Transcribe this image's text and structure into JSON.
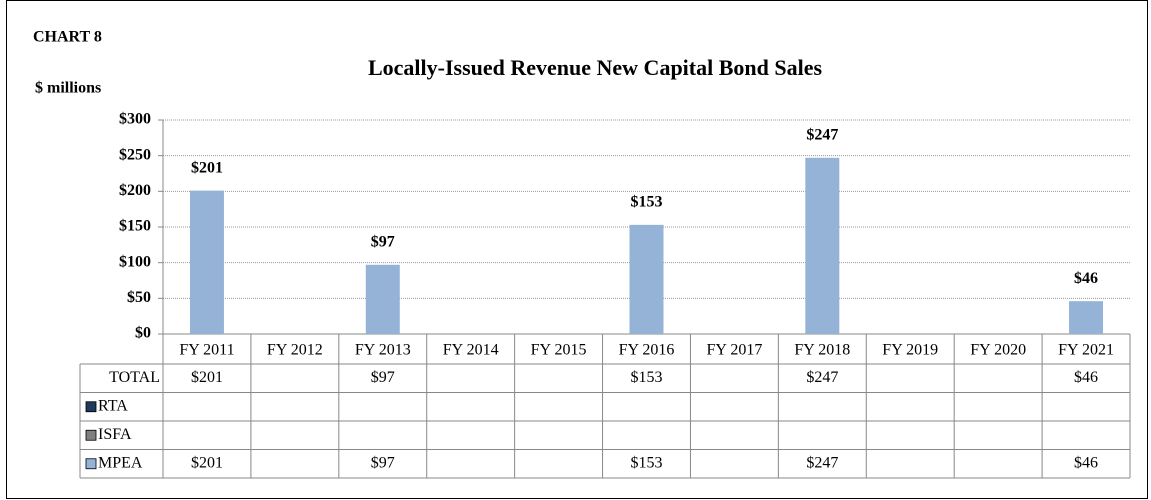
{
  "chart_data": {
    "type": "bar",
    "label": "CHART 8",
    "title": "Locally-Issued Revenue New Capital Bond Sales",
    "y_label": "$ millions",
    "categories": [
      "FY 2011",
      "FY 2012",
      "FY 2013",
      "FY 2014",
      "FY 2015",
      "FY 2016",
      "FY 2017",
      "FY 2018",
      "FY 2019",
      "FY 2020",
      "FY 2021"
    ],
    "series": [
      {
        "name": "TOTAL",
        "values": [
          201,
          null,
          97,
          null,
          null,
          153,
          null,
          247,
          null,
          null,
          46
        ],
        "value_labels": [
          "$201",
          null,
          "$97",
          null,
          null,
          "$153",
          null,
          "$247",
          null,
          null,
          "$46"
        ]
      },
      {
        "name": "RTA",
        "color": "#1f3a5a",
        "values": [
          null,
          null,
          null,
          null,
          null,
          null,
          null,
          null,
          null,
          null,
          null
        ]
      },
      {
        "name": "ISFA",
        "color": "#808080",
        "values": [
          null,
          null,
          null,
          null,
          null,
          null,
          null,
          null,
          null,
          null,
          null
        ]
      },
      {
        "name": "MPEA",
        "color": "#95b3d7",
        "values": [
          201,
          null,
          97,
          null,
          null,
          153,
          null,
          247,
          null,
          null,
          46
        ],
        "value_labels": [
          "$201",
          null,
          "$97",
          null,
          null,
          "$153",
          null,
          "$247",
          null,
          null,
          "$46"
        ]
      }
    ],
    "ylim": [
      0,
      300
    ],
    "yticks": [
      {
        "value": 0,
        "label": "$0"
      },
      {
        "value": 50,
        "label": "$50"
      },
      {
        "value": 100,
        "label": "$100"
      },
      {
        "value": 150,
        "label": "$150"
      },
      {
        "value": 200,
        "label": "$200"
      },
      {
        "value": 250,
        "label": "$250"
      },
      {
        "value": 300,
        "label": "$300"
      }
    ],
    "grid": true
  }
}
